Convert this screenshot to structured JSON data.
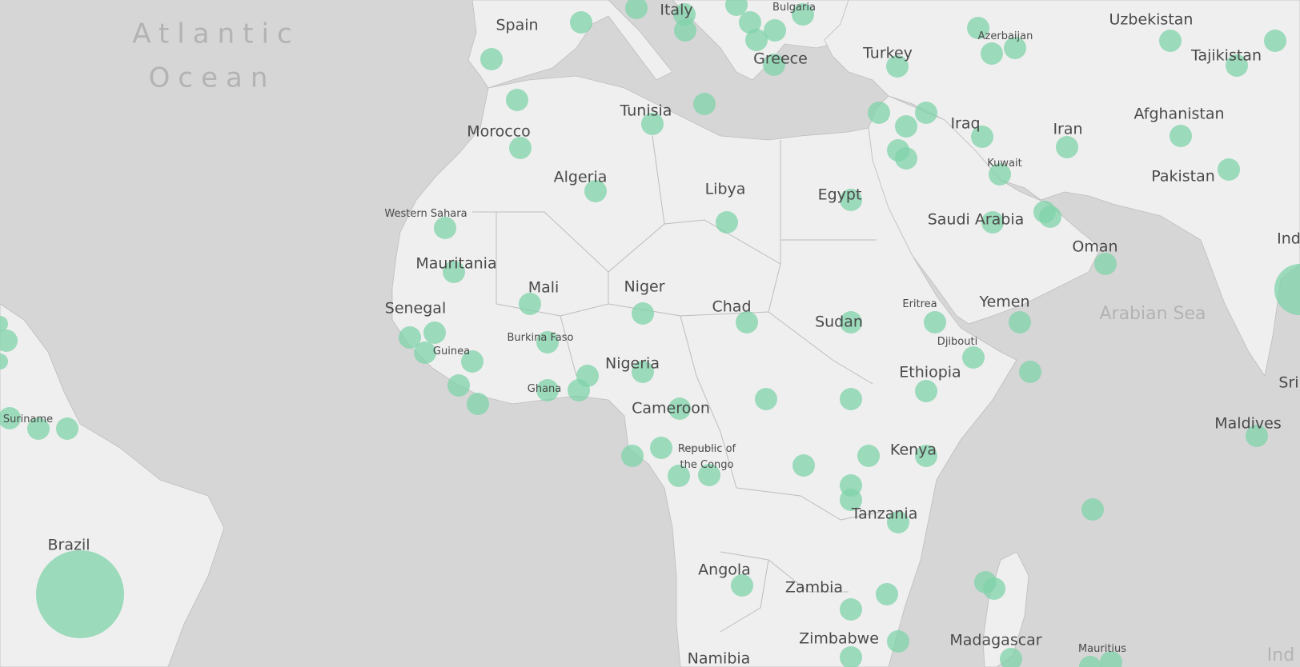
{
  "colors": {
    "ocean": "#d6d6d6",
    "land": "#efefef",
    "border": "#bdbdbd",
    "label": "#4a4a4a",
    "water_label": "#b3b3b3",
    "bubble": "#7fd3a9"
  },
  "water_labels": {
    "atlantic_1": "Atlantic",
    "atlantic_2": "Ocean",
    "arabian_sea": "Arabian Sea",
    "indian_fragment": "Ind"
  },
  "countries": {
    "spain": "Spain",
    "italy": "Italy",
    "bulgaria": "Bulgaria",
    "greece": "Greece",
    "turkey": "Turkey",
    "azerbaijan": "Azerbaijan",
    "uzbekistan": "Uzbekistan",
    "tajikistan": "Tajikistan",
    "tunisia": "Tunisia",
    "morocco": "Morocco",
    "algeria": "Algeria",
    "libya": "Libya",
    "egypt": "Egypt",
    "iraq": "Iraq",
    "iran": "Iran",
    "afghanistan": "Afghanistan",
    "pakistan": "Pakistan",
    "kuwait": "Kuwait",
    "saudi_arabia": "Saudi Arabia",
    "western_sahara": "Western Sahara",
    "mauritania": "Mauritania",
    "mali": "Mali",
    "niger": "Niger",
    "chad": "Chad",
    "sudan": "Sudan",
    "oman": "Oman",
    "eritrea": "Eritrea",
    "yemen": "Yemen",
    "senegal": "Senegal",
    "burkina_faso": "Burkina Faso",
    "guinea": "Guinea",
    "djibouti": "Djibouti",
    "nigeria": "Nigeria",
    "ethiopia": "Ethiopia",
    "ghana": "Ghana",
    "cameroon": "Cameroon",
    "suriname": "Suriname",
    "maldives": "Maldives",
    "republic_congo_1": "Republic of",
    "republic_congo_2": "the Congo",
    "kenya": "Kenya",
    "tanzania": "Tanzania",
    "brazil": "Brazil",
    "angola": "Angola",
    "zambia": "Zambia",
    "zimbabwe": "Zimbabwe",
    "madagascar": "Madagascar",
    "mauritius": "Mauritius",
    "namibia": "Namibia",
    "india_fragment": "Ind",
    "sri_fragment": "Sri"
  }
}
